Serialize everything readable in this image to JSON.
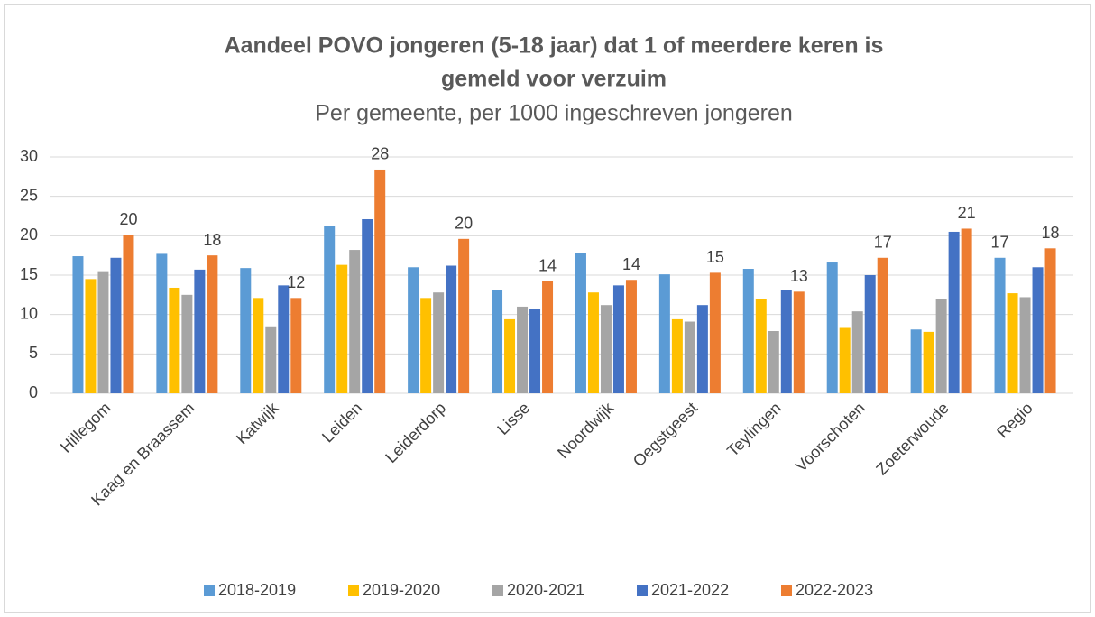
{
  "chart_data": {
    "type": "bar",
    "title": [
      "Aandeel POVO jongeren (5-18 jaar) dat 1 of meerdere keren is",
      "gemeld voor verzuim"
    ],
    "subtitle": "Per gemeente, per 1000 ingeschreven jongeren",
    "categories": [
      "Hillegom",
      "Kaag en Braassem",
      "Katwijk",
      "Leiden",
      "Leiderdorp",
      "Lisse",
      "Noordwijk",
      "Oegstgeest",
      "Teylingen",
      "Voorschoten",
      "Zoeterwoude",
      "Regio"
    ],
    "series": [
      {
        "name": "2018-2019",
        "color": "#5b9bd5",
        "values": [
          17.4,
          17.7,
          15.9,
          21.2,
          16.0,
          13.1,
          17.8,
          15.1,
          15.8,
          16.6,
          8.1,
          17.2
        ],
        "value_labels": [
          null,
          null,
          null,
          null,
          null,
          null,
          null,
          null,
          null,
          null,
          null,
          "17"
        ]
      },
      {
        "name": "2019-2020",
        "color": "#ffc000",
        "values": [
          14.5,
          13.4,
          12.1,
          16.3,
          12.1,
          9.4,
          12.8,
          9.4,
          12.0,
          8.3,
          7.8,
          12.7
        ]
      },
      {
        "name": "2020-2021",
        "color": "#a5a5a5",
        "values": [
          15.5,
          12.5,
          8.5,
          18.2,
          12.8,
          11.0,
          11.2,
          9.1,
          7.9,
          10.4,
          12.0,
          12.2
        ]
      },
      {
        "name": "2021-2022",
        "color": "#4472c4",
        "values": [
          17.2,
          15.7,
          13.7,
          22.1,
          16.2,
          10.7,
          13.7,
          11.2,
          13.1,
          15.0,
          20.5,
          16.0
        ]
      },
      {
        "name": "2022-2023",
        "color": "#ed7d31",
        "values": [
          20.1,
          17.5,
          12.1,
          28.4,
          19.6,
          14.2,
          14.4,
          15.3,
          12.9,
          17.2,
          20.9,
          18.4
        ],
        "value_labels": [
          "20",
          "18",
          "12",
          "28",
          "20",
          "14",
          "14",
          "15",
          "13",
          "17",
          "21",
          "18"
        ]
      }
    ],
    "ylim": [
      0,
      30
    ],
    "yticks": [
      0,
      5,
      10,
      15,
      20,
      25,
      30
    ],
    "grid": true,
    "legend": "bottom"
  }
}
